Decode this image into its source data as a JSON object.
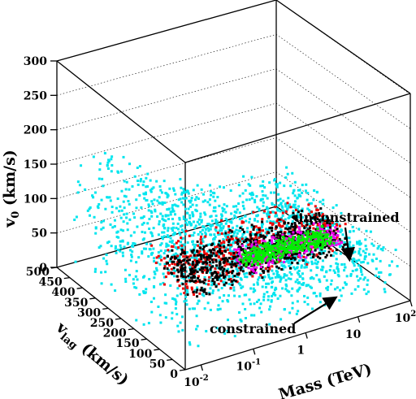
{
  "chart_data": {
    "type": "scatter",
    "dimensions": "3d",
    "xlabel": "Mass (TeV)",
    "ylabel": "v_lag (km/s)",
    "zlabel": "v_0 (km/s)",
    "x_scale": "log",
    "x_range": [
      0.005,
      100
    ],
    "y_range": [
      50,
      500
    ],
    "z_range": [
      0,
      300
    ],
    "x_ticks": [
      {
        "base": "10",
        "exp": "-2",
        "value": 0.01
      },
      {
        "base": "10",
        "exp": "-1",
        "value": 0.1
      },
      {
        "base": "1",
        "exp": "",
        "value": 1
      },
      {
        "base": "10",
        "exp": "",
        "value": 10
      },
      {
        "base": "10",
        "exp": "2",
        "value": 100
      }
    ],
    "y_ticks": [
      "500",
      "450",
      "400",
      "350",
      "300",
      "250",
      "200",
      "150",
      "100",
      "50",
      "0"
    ],
    "z_ticks": [
      "300",
      "250",
      "200",
      "150",
      "100",
      "50",
      "0"
    ],
    "grid": true,
    "series": [
      {
        "name": "unconstrained",
        "color": "#00e5ee"
      },
      {
        "name": "constrained",
        "color": "#00ee00"
      }
    ],
    "other_colors": {
      "red": "#ee0000",
      "black": "#000000",
      "magenta": "#ee00ee"
    },
    "annotations": [
      {
        "text": "unconstrained",
        "points_to": "red/black band"
      },
      {
        "text": "constrained",
        "points_to": "green/magenta band"
      }
    ]
  }
}
